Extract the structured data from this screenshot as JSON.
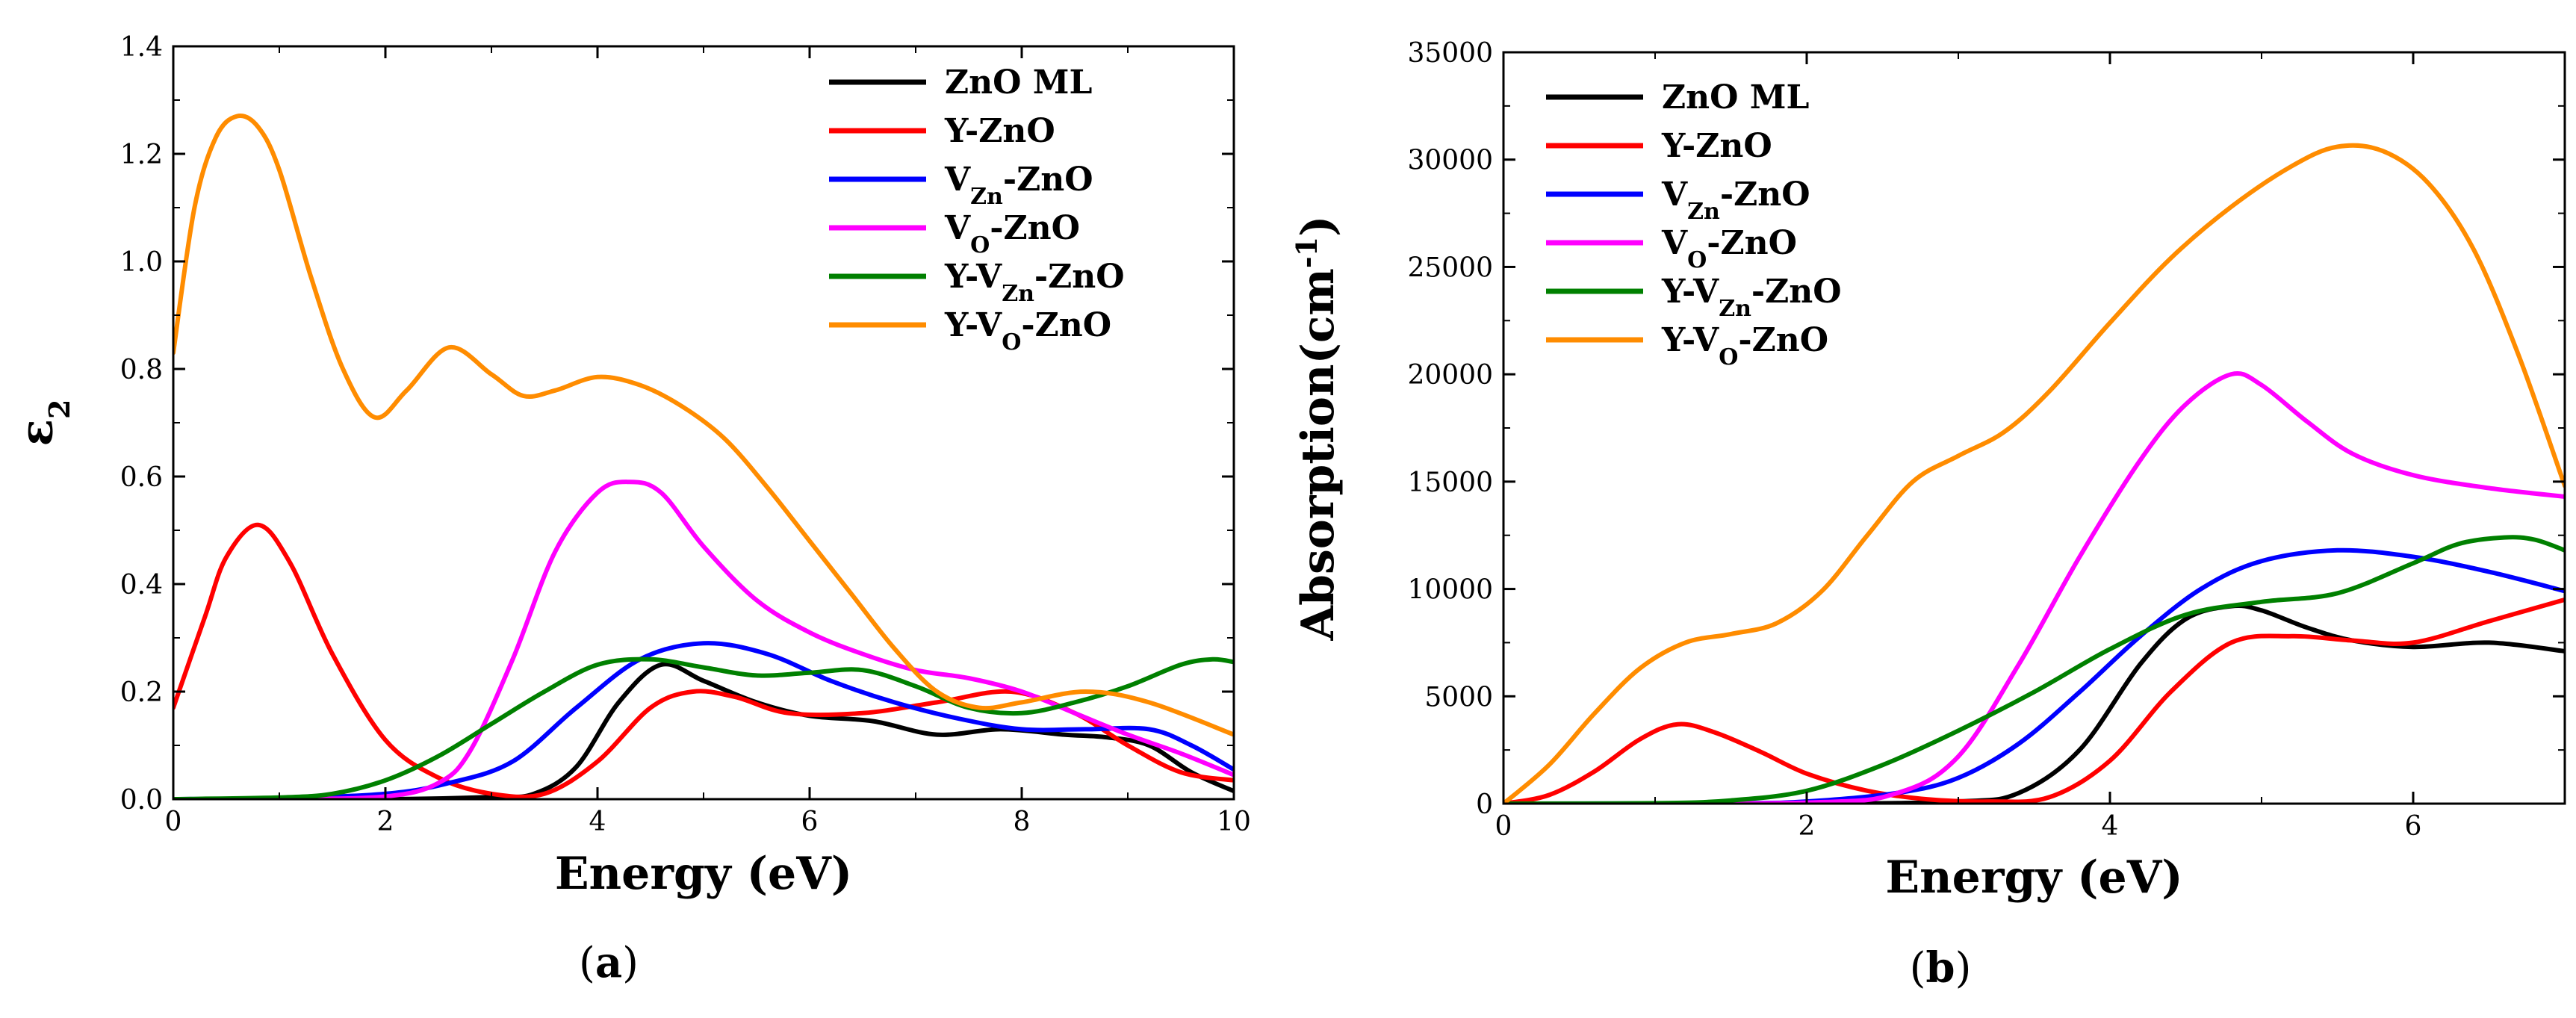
{
  "figure": {
    "panel_labels": [
      {
        "open": "(",
        "letter": "a",
        "close": ")"
      },
      {
        "open": "(",
        "letter": "b",
        "close": ")"
      }
    ]
  },
  "colors": {
    "ZnO ML": "#000000",
    "Y-ZnO": "#ff0000",
    "VZn-ZnO": "#0000ff",
    "VO-ZnO": "#ff00ff",
    "Y-VZn-ZnO": "#008000",
    "Y-VO-ZnO": "#ff8c00"
  },
  "legend": [
    {
      "key": "ZnO ML",
      "parts": [
        {
          "t": "ZnO ML"
        }
      ]
    },
    {
      "key": "Y-ZnO",
      "parts": [
        {
          "t": "Y-ZnO"
        }
      ]
    },
    {
      "key": "VZn-ZnO",
      "parts": [
        {
          "t": "V"
        },
        {
          "t": "Zn",
          "sub": true
        },
        {
          "t": "-ZnO"
        }
      ]
    },
    {
      "key": "VO-ZnO",
      "parts": [
        {
          "t": "V"
        },
        {
          "t": "O",
          "sub": true
        },
        {
          "t": "-ZnO"
        }
      ]
    },
    {
      "key": "Y-VZn-ZnO",
      "parts": [
        {
          "t": "Y-V"
        },
        {
          "t": "Zn",
          "sub": true
        },
        {
          "t": "-ZnO"
        }
      ]
    },
    {
      "key": "Y-VO-ZnO",
      "parts": [
        {
          "t": "Y-V"
        },
        {
          "t": "O",
          "sub": true
        },
        {
          "t": "-ZnO"
        }
      ]
    }
  ],
  "chart_data": [
    {
      "id": "a",
      "type": "line",
      "xlabel": "Energy (eV)",
      "ylabel": [
        {
          "t": "ε"
        },
        {
          "t": "2",
          "sub": true
        }
      ],
      "xlim": [
        0,
        10
      ],
      "ylim": [
        0,
        1.4
      ],
      "xticks": [
        0,
        2,
        4,
        6,
        8,
        10
      ],
      "yticks": [
        0.0,
        0.2,
        0.4,
        0.6,
        0.8,
        1.0,
        1.2,
        1.4
      ],
      "ytick_decimals": 1,
      "series": [
        {
          "name": "ZnO ML",
          "x": [
            0,
            2,
            3,
            3.4,
            3.8,
            4.2,
            4.6,
            5.0,
            5.5,
            6.0,
            6.6,
            7.2,
            7.8,
            8.4,
            8.8,
            9.2,
            9.6,
            10
          ],
          "y": [
            0,
            0,
            0.004,
            0.01,
            0.06,
            0.18,
            0.25,
            0.22,
            0.18,
            0.155,
            0.145,
            0.12,
            0.13,
            0.12,
            0.115,
            0.1,
            0.05,
            0.015
          ]
        },
        {
          "name": "Y-ZnO",
          "x": [
            0,
            0.3,
            0.5,
            0.8,
            1.1,
            1.5,
            2.0,
            2.5,
            3.0,
            3.5,
            4.0,
            4.5,
            4.9,
            5.3,
            5.8,
            6.5,
            7.2,
            7.9,
            8.5,
            9.0,
            9.5,
            10
          ],
          "y": [
            0.17,
            0.34,
            0.45,
            0.51,
            0.44,
            0.27,
            0.11,
            0.04,
            0.01,
            0.01,
            0.07,
            0.17,
            0.2,
            0.19,
            0.16,
            0.16,
            0.18,
            0.2,
            0.16,
            0.1,
            0.05,
            0.035
          ]
        },
        {
          "name": "VZn-ZnO",
          "x": [
            0,
            1.0,
            2.0,
            2.6,
            3.2,
            3.8,
            4.4,
            5.0,
            5.6,
            6.2,
            6.8,
            7.4,
            8.0,
            8.6,
            9.2,
            9.6,
            10
          ],
          "y": [
            0,
            0.002,
            0.01,
            0.03,
            0.07,
            0.17,
            0.26,
            0.29,
            0.27,
            0.22,
            0.18,
            0.15,
            0.13,
            0.13,
            0.13,
            0.1,
            0.055
          ]
        },
        {
          "name": "VO-ZnO",
          "x": [
            0,
            1.0,
            2.0,
            2.5,
            2.8,
            3.2,
            3.6,
            4.0,
            4.3,
            4.6,
            5.0,
            5.5,
            6.0,
            6.5,
            7.0,
            7.5,
            8.0,
            8.5,
            9.0,
            9.5,
            10
          ],
          "y": [
            0,
            0,
            0.005,
            0.03,
            0.09,
            0.26,
            0.46,
            0.57,
            0.59,
            0.57,
            0.47,
            0.37,
            0.31,
            0.27,
            0.24,
            0.225,
            0.2,
            0.16,
            0.12,
            0.085,
            0.045
          ]
        },
        {
          "name": "Y-VZn-ZnO",
          "x": [
            0,
            1.0,
            1.5,
            2.0,
            2.5,
            3.0,
            3.5,
            4.0,
            4.5,
            5.0,
            5.5,
            6.0,
            6.5,
            7.0,
            7.5,
            8.0,
            8.5,
            9.0,
            9.5,
            9.8,
            10
          ],
          "y": [
            0,
            0.003,
            0.01,
            0.035,
            0.08,
            0.14,
            0.2,
            0.25,
            0.26,
            0.245,
            0.23,
            0.235,
            0.24,
            0.21,
            0.17,
            0.16,
            0.18,
            0.21,
            0.25,
            0.26,
            0.255
          ]
        },
        {
          "name": "Y-VO-ZnO",
          "x": [
            0,
            0.2,
            0.4,
            0.6,
            0.8,
            1.0,
            1.3,
            1.6,
            1.9,
            2.2,
            2.6,
            3.0,
            3.3,
            3.6,
            4.0,
            4.4,
            4.8,
            5.2,
            5.6,
            6.0,
            6.4,
            6.8,
            7.2,
            7.6,
            8.0,
            8.6,
            9.2,
            10
          ],
          "y": [
            0.83,
            1.1,
            1.23,
            1.27,
            1.25,
            1.17,
            0.97,
            0.8,
            0.71,
            0.76,
            0.84,
            0.79,
            0.75,
            0.76,
            0.785,
            0.77,
            0.73,
            0.67,
            0.58,
            0.48,
            0.38,
            0.28,
            0.2,
            0.17,
            0.18,
            0.2,
            0.18,
            0.12
          ]
        }
      ]
    },
    {
      "id": "b",
      "type": "line",
      "xlabel": "Energy (eV)",
      "ylabel": [
        {
          "t": "Absorption(cm"
        },
        {
          "t": "-1",
          "sup": true
        },
        {
          "t": ")"
        }
      ],
      "xlim": [
        0,
        7
      ],
      "ylim": [
        0,
        35000
      ],
      "xticks": [
        0,
        2,
        4,
        6
      ],
      "yticks": [
        0,
        5000,
        10000,
        15000,
        20000,
        25000,
        30000,
        35000
      ],
      "ytick_decimals": 0,
      "series": [
        {
          "name": "ZnO ML",
          "x": [
            0,
            2.0,
            3.0,
            3.4,
            3.8,
            4.2,
            4.5,
            4.8,
            5.0,
            5.3,
            5.6,
            6.0,
            6.5,
            7.0
          ],
          "y": [
            0,
            0,
            100,
            500,
            2500,
            6500,
            8600,
            9200,
            9000,
            8200,
            7600,
            7300,
            7500,
            7100
          ]
        },
        {
          "name": "Y-ZnO",
          "x": [
            0,
            0.3,
            0.6,
            0.9,
            1.15,
            1.4,
            1.7,
            2.0,
            2.4,
            2.8,
            3.2,
            3.6,
            4.0,
            4.4,
            4.8,
            5.2,
            5.6,
            6.0,
            6.5,
            7.0
          ],
          "y": [
            0,
            400,
            1500,
            3000,
            3700,
            3300,
            2400,
            1400,
            600,
            200,
            100,
            300,
            2000,
            5200,
            7500,
            7800,
            7600,
            7500,
            8500,
            9500
          ]
        },
        {
          "name": "VZn-ZnO",
          "x": [
            0,
            1.5,
            2.0,
            2.6,
            3.0,
            3.4,
            3.8,
            4.2,
            4.6,
            5.0,
            5.5,
            6.0,
            6.5,
            7.0
          ],
          "y": [
            0,
            20,
            100,
            500,
            1200,
            2800,
            5200,
            7800,
            10000,
            11300,
            11800,
            11500,
            10800,
            9900
          ]
        },
        {
          "name": "VO-ZnO",
          "x": [
            0,
            2.0,
            2.6,
            3.0,
            3.4,
            3.8,
            4.2,
            4.5,
            4.8,
            5.0,
            5.3,
            5.6,
            6.0,
            6.5,
            7.0
          ],
          "y": [
            0,
            50,
            500,
            2200,
            6500,
            11500,
            16000,
            18600,
            20000,
            19500,
            17800,
            16300,
            15300,
            14700,
            14300
          ]
        },
        {
          "name": "Y-VZn-ZnO",
          "x": [
            0,
            1.0,
            1.5,
            2.0,
            2.5,
            3.0,
            3.5,
            4.0,
            4.5,
            5.0,
            5.5,
            6.0,
            6.3,
            6.6,
            6.8,
            7.0
          ],
          "y": [
            0,
            20,
            150,
            600,
            1800,
            3400,
            5200,
            7200,
            8800,
            9400,
            9800,
            11200,
            12100,
            12400,
            12300,
            11800
          ]
        },
        {
          "name": "Y-VO-ZnO",
          "x": [
            0,
            0.3,
            0.6,
            0.9,
            1.2,
            1.5,
            1.8,
            2.1,
            2.4,
            2.7,
            3.0,
            3.3,
            3.6,
            4.0,
            4.4,
            4.8,
            5.2,
            5.5,
            5.8,
            6.1,
            6.4,
            6.7,
            7.0
          ],
          "y": [
            0,
            1800,
            4200,
            6300,
            7500,
            7900,
            8400,
            9900,
            12500,
            15000,
            16200,
            17300,
            19200,
            22400,
            25400,
            27800,
            29700,
            30600,
            30400,
            28900,
            25800,
            20800,
            14800
          ]
        }
      ]
    }
  ]
}
